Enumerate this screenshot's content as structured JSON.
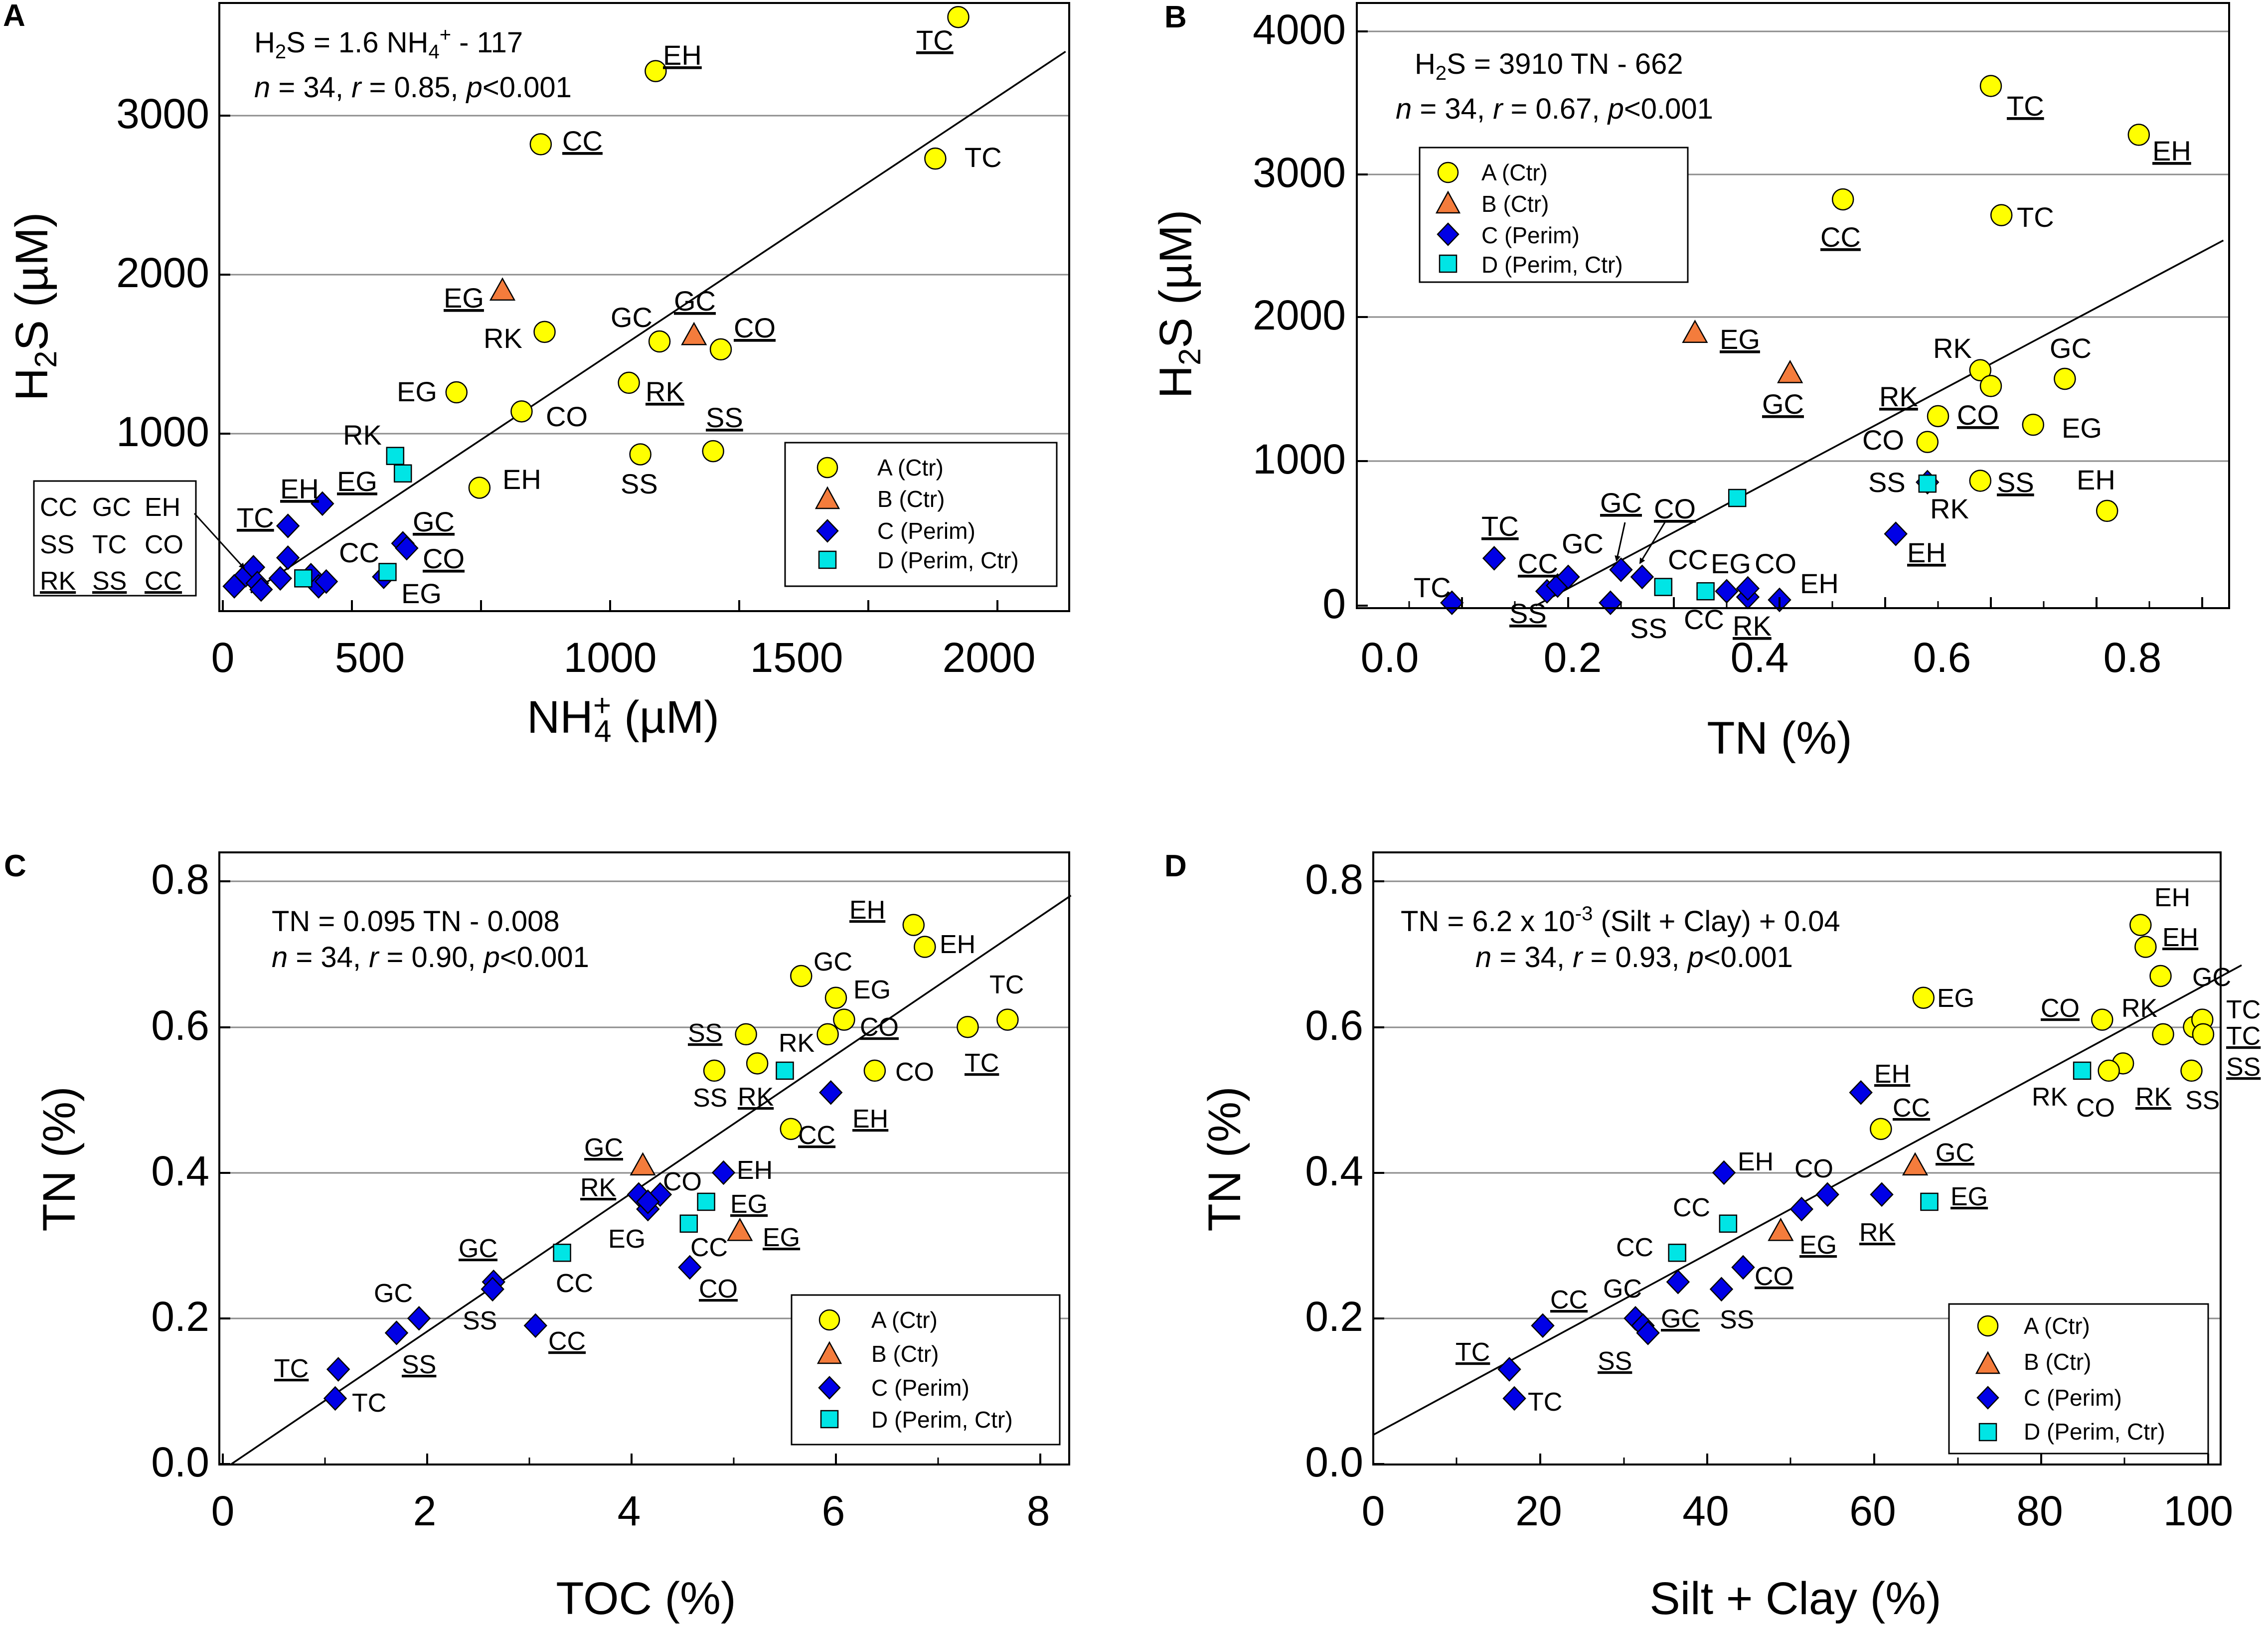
{
  "panels": [
    {
      "id": "A",
      "letter": "A",
      "xlabel": "NH4+ (µM)",
      "ylabel": "H2S (µM)",
      "eq_line1": "H2S = 1.6 NH4+ - 117",
      "eq_line2": "n = 34, r = 0.85, p<0.001",
      "x_ticks": [
        "0",
        "500",
        "1000",
        "1500",
        "2000"
      ],
      "y_ticks": [
        "1000",
        "2000",
        "3000"
      ],
      "legend": [
        "A (Ctr)",
        "B (Ctr)",
        "C (Perim)",
        "D (Perim, Ctr)"
      ],
      "boxed_labels": [
        "CC",
        "GC",
        "EH",
        "SS",
        "TC",
        "CO",
        "RK",
        "SS",
        "CC"
      ],
      "labels": [
        "TC",
        "EH",
        "CC",
        "TC",
        "EG",
        "RK",
        "GC",
        "GC",
        "CO",
        "EG",
        "RK",
        "CO",
        "SS",
        "SS",
        "RK",
        "EH",
        "CO",
        "EH",
        "SS",
        "EH",
        "TC",
        "EG",
        "GC",
        "CC",
        "CO",
        "EG"
      ]
    },
    {
      "id": "B",
      "letter": "B",
      "xlabel": "TN (%)",
      "ylabel": "H2S (µM)",
      "eq_line1": "H2S = 3910 TN - 662",
      "eq_line2": "n = 34, r = 0.67, p<0.001",
      "x_ticks": [
        "0.0",
        "0.2",
        "0.4",
        "0.6",
        "0.8"
      ],
      "y_ticks": [
        "0",
        "1000",
        "2000",
        "3000",
        "4000"
      ],
      "legend": [
        "A (Ctr)",
        "B (Ctr)",
        "C (Perim)",
        "D (Perim, Ctr)"
      ],
      "labels": [
        "TC",
        "EH",
        "TC",
        "CC",
        "EG",
        "GC",
        "RK",
        "GC",
        "RK",
        "CO",
        "CO",
        "EG",
        "SS",
        "SS",
        "RK",
        "EH",
        "EH",
        "TC",
        "CC",
        "GC",
        "CO",
        "SS",
        "SS",
        "CC",
        "EG",
        "CO",
        "EH",
        "TC",
        "CC",
        "RK"
      ]
    },
    {
      "id": "C",
      "letter": "C",
      "xlabel": "TOC (%)",
      "ylabel": "TN (%)",
      "eq_line1": "TN = 0.095 TN - 0.008",
      "eq_line2": "n = 34, r = 0.90, p<0.001",
      "x_ticks": [
        "0",
        "2",
        "4",
        "6",
        "8"
      ],
      "y_ticks": [
        "0.0",
        "0.2",
        "0.4",
        "0.6",
        "0.8"
      ],
      "legend": [
        "A (Ctr)",
        "B (Ctr)",
        "C (Perim)",
        "D (Perim, Ctr)"
      ],
      "labels": [
        "EH",
        "EH",
        "GC",
        "EG",
        "TC",
        "SS",
        "RK",
        "CO",
        "CO",
        "TC",
        "SS",
        "RK",
        "EH",
        "CC",
        "GC",
        "CO",
        "EH",
        "RK",
        "EG",
        "EG",
        "CC",
        "EG",
        "CO",
        "GC",
        "GC",
        "SS",
        "CC",
        "CC",
        "TC",
        "TC",
        "SS"
      ]
    },
    {
      "id": "D",
      "letter": "D",
      "xlabel": "Silt + Clay (%)",
      "ylabel": "TN (%)",
      "eq_line1": "TN = 6.2 x 10-3 (Silt + Clay) + 0.04",
      "eq_line2": "n = 34, r = 0.93, p<0.001",
      "x_ticks": [
        "0",
        "20",
        "40",
        "60",
        "80",
        "100"
      ],
      "y_ticks": [
        "0.0",
        "0.2",
        "0.4",
        "0.6",
        "0.8"
      ],
      "legend": [
        "A (Ctr)",
        "B (Ctr)",
        "C (Perim)",
        "D (Perim, Ctr)"
      ],
      "labels": [
        "EH",
        "EH",
        "GC",
        "EG",
        "CO",
        "RK",
        "TC",
        "TC",
        "SS",
        "RK",
        "CO",
        "RK",
        "SS",
        "EH",
        "CC",
        "GC",
        "EG",
        "EH",
        "CO",
        "CC",
        "EG",
        "CO",
        "RK",
        "CC",
        "SS",
        "GC",
        "CC",
        "TC",
        "TC",
        "SS",
        "GC"
      ]
    }
  ],
  "chart_data": [
    {
      "panel": "A",
      "type": "scatter",
      "title": "",
      "xlabel": "NH4+ (µM)",
      "ylabel": "H2S (µM)",
      "xlim": [
        0,
        2200
      ],
      "ylim": [
        0,
        3800
      ],
      "regression": {
        "slope": 1.6,
        "intercept": -117,
        "x_start": 73,
        "x_end": 2200
      },
      "series": [
        {
          "name": "A (Ctr)",
          "marker": "circle",
          "color": "#ffff00",
          "points": [
            [
              1920,
              3620
            ],
            [
              1130,
              3280
            ],
            [
              830,
              2820
            ],
            [
              1860,
              2730
            ],
            [
              840,
              1640
            ],
            [
              1140,
              1580
            ],
            [
              1300,
              1530
            ],
            [
              610,
              1260
            ],
            [
              780,
              1140
            ],
            [
              1060,
              1320
            ],
            [
              1090,
              870
            ],
            [
              1280,
              890
            ],
            [
              670,
              660
            ]
          ]
        },
        {
          "name": "B (Ctr)",
          "marker": "triangle",
          "color": "#f47c3c",
          "points": [
            [
              730,
              1900
            ],
            [
              1230,
              1620
            ]
          ]
        },
        {
          "name": "C (Perim)",
          "marker": "diamond",
          "color": "#0000e6",
          "points": [
            [
              260,
              560
            ],
            [
              170,
              420
            ],
            [
              170,
              220
            ],
            [
              470,
              310
            ],
            [
              480,
              280
            ],
            [
              60,
              110
            ],
            [
              80,
              160
            ],
            [
              90,
              60
            ],
            [
              30,
              40
            ],
            [
              150,
              90
            ],
            [
              230,
              110
            ],
            [
              250,
              40
            ],
            [
              270,
              70
            ],
            [
              420,
              100
            ],
            [
              100,
              20
            ]
          ]
        },
        {
          "name": "D (Perim, Ctr)",
          "marker": "square",
          "color": "#00e5e5",
          "points": [
            [
              450,
              860
            ],
            [
              470,
              750
            ],
            [
              430,
              130
            ],
            [
              210,
              90
            ]
          ]
        }
      ]
    },
    {
      "panel": "B",
      "type": "scatter",
      "title": "",
      "xlabel": "TN (%)",
      "ylabel": "H2S (µM)",
      "xlim": [
        0,
        0.82
      ],
      "ylim": [
        0,
        4100
      ],
      "regression": {
        "slope": 3910,
        "intercept": -662,
        "x_start": 0.1693,
        "x_end": 0.82
      },
      "series": [
        {
          "name": "A (Ctr)",
          "marker": "circle",
          "color": "#ffff00",
          "points": [
            [
              0.6,
              3620
            ],
            [
              0.74,
              3280
            ],
            [
              0.46,
              2830
            ],
            [
              0.61,
              2720
            ],
            [
              0.59,
              1640
            ],
            [
              0.6,
              1530
            ],
            [
              0.67,
              1580
            ],
            [
              0.55,
              1320
            ],
            [
              0.64,
              1260
            ],
            [
              0.54,
              1140
            ],
            [
              0.59,
              870
            ],
            [
              0.71,
              660
            ]
          ]
        },
        {
          "name": "B (Ctr)",
          "marker": "triangle",
          "color": "#f47c3c",
          "points": [
            [
              0.32,
              1900
            ],
            [
              0.41,
              1620
            ]
          ]
        },
        {
          "name": "C (Perim)",
          "marker": "diamond",
          "color": "#0000e6",
          "points": [
            [
              0.13,
              330
            ],
            [
              0.09,
              20
            ],
            [
              0.18,
              100
            ],
            [
              0.19,
              140
            ],
            [
              0.2,
              200
            ],
            [
              0.24,
              20
            ],
            [
              0.25,
              250
            ],
            [
              0.27,
              200
            ],
            [
              0.35,
              100
            ],
            [
              0.37,
              60
            ],
            [
              0.37,
              120
            ],
            [
              0.4,
              40
            ],
            [
              0.51,
              500
            ],
            [
              0.54,
              860
            ]
          ]
        },
        {
          "name": "D (Perim, Ctr)",
          "marker": "square",
          "color": "#00e5e5",
          "points": [
            [
              0.36,
              750
            ],
            [
              0.54,
              850
            ],
            [
              0.29,
              130
            ],
            [
              0.33,
              100
            ]
          ]
        }
      ]
    },
    {
      "panel": "C",
      "type": "scatter",
      "title": "",
      "xlabel": "TOC (%)",
      "ylabel": "TN (%)",
      "xlim": [
        0,
        8.3
      ],
      "ylim": [
        0,
        0.8
      ],
      "regression": {
        "slope": 0.095,
        "intercept": -0.008,
        "x_start": 0.0842,
        "x_end": 8.3
      },
      "series": [
        {
          "name": "A (Ctr)",
          "marker": "circle",
          "color": "#ffff00",
          "points": [
            [
              6.76,
              0.74
            ],
            [
              6.87,
              0.71
            ],
            [
              5.66,
              0.67
            ],
            [
              6.0,
              0.64
            ],
            [
              7.29,
              0.6
            ],
            [
              7.68,
              0.61
            ],
            [
              6.08,
              0.61
            ],
            [
              5.12,
              0.59
            ],
            [
              5.92,
              0.59
            ],
            [
              5.23,
              0.55
            ],
            [
              4.81,
              0.54
            ],
            [
              6.38,
              0.54
            ],
            [
              5.56,
              0.46
            ]
          ]
        },
        {
          "name": "B (Ctr)",
          "marker": "triangle",
          "color": "#f47c3c",
          "points": [
            [
              4.11,
              0.41
            ],
            [
              5.06,
              0.32
            ]
          ]
        },
        {
          "name": "C (Perim)",
          "marker": "diamond",
          "color": "#0000e6",
          "points": [
            [
              5.95,
              0.51
            ],
            [
              4.9,
              0.4
            ],
            [
              4.07,
              0.37
            ],
            [
              4.28,
              0.37
            ],
            [
              4.16,
              0.35
            ],
            [
              4.16,
              0.36
            ],
            [
              4.57,
              0.27
            ],
            [
              2.65,
              0.25
            ],
            [
              2.64,
              0.24
            ],
            [
              1.92,
              0.2
            ],
            [
              1.7,
              0.18
            ],
            [
              3.06,
              0.19
            ],
            [
              1.13,
              0.13
            ],
            [
              1.1,
              0.09
            ]
          ]
        },
        {
          "name": "D (Perim, Ctr)",
          "marker": "square",
          "color": "#00e5e5",
          "points": [
            [
              5.5,
              0.54
            ],
            [
              4.73,
              0.36
            ],
            [
              4.56,
              0.33
            ],
            [
              3.32,
              0.29
            ]
          ]
        }
      ]
    },
    {
      "panel": "D",
      "type": "scatter",
      "title": "",
      "xlabel": "Silt + Clay (%)",
      "ylabel": "TN (%)",
      "xlim": [
        0,
        104
      ],
      "ylim": [
        0,
        0.8
      ],
      "regression": {
        "slope": 0.0062,
        "intercept": 0.04,
        "x_start": 0,
        "x_end": 104
      },
      "series": [
        {
          "name": "A (Ctr)",
          "marker": "circle",
          "color": "#ffff00",
          "points": [
            [
              91.9,
              0.74
            ],
            [
              92.5,
              0.71
            ],
            [
              94.3,
              0.67
            ],
            [
              65.9,
              0.64
            ],
            [
              87.3,
              0.61
            ],
            [
              98.3,
              0.6
            ],
            [
              99.3,
              0.61
            ],
            [
              99.4,
              0.59
            ],
            [
              94.6,
              0.59
            ],
            [
              89.8,
              0.55
            ],
            [
              88.1,
              0.54
            ],
            [
              98.0,
              0.54
            ],
            [
              60.8,
              0.46
            ]
          ]
        },
        {
          "name": "B (Ctr)",
          "marker": "triangle",
          "color": "#f47c3c",
          "points": [
            [
              64.9,
              0.41
            ],
            [
              48.8,
              0.32
            ]
          ]
        },
        {
          "name": "C (Perim)",
          "marker": "diamond",
          "color": "#0000e6",
          "points": [
            [
              58.4,
              0.51
            ],
            [
              42.0,
              0.4
            ],
            [
              54.4,
              0.37
            ],
            [
              60.9,
              0.37
            ],
            [
              51.3,
              0.35
            ],
            [
              44.3,
              0.27
            ],
            [
              36.5,
              0.25
            ],
            [
              41.7,
              0.24
            ],
            [
              31.4,
              0.2
            ],
            [
              32.3,
              0.19
            ],
            [
              20.3,
              0.19
            ],
            [
              32.9,
              0.18
            ],
            [
              16.3,
              0.13
            ],
            [
              16.9,
              0.09
            ]
          ]
        },
        {
          "name": "D (Perim, Ctr)",
          "marker": "square",
          "color": "#00e5e5",
          "points": [
            [
              84.9,
              0.54
            ],
            [
              66.6,
              0.36
            ],
            [
              42.5,
              0.33
            ],
            [
              36.4,
              0.29
            ]
          ]
        }
      ]
    }
  ]
}
